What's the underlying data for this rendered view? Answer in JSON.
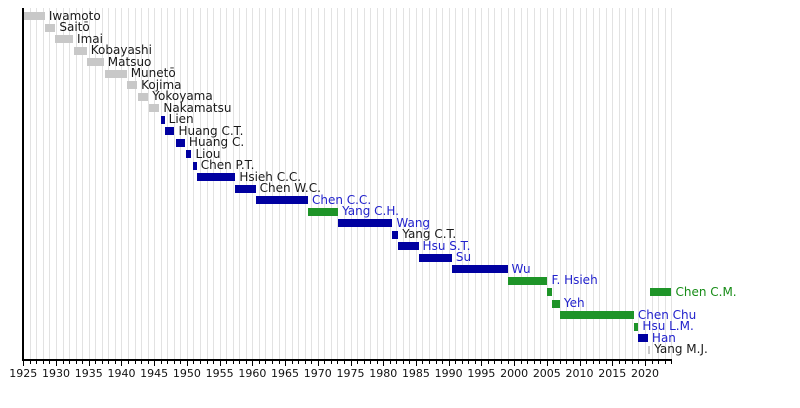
{
  "chart_data": {
    "type": "bar",
    "variant": "gantt-timeline",
    "xlabel": "",
    "ylabel": "",
    "grid": "annual vertical gridlines",
    "legend": "none",
    "axis": {
      "year_min": 1925,
      "year_max": 2024,
      "minor_tick_step": 1,
      "major_tick_step": 5,
      "major_tick_labels": [
        "1925",
        "1930",
        "1935",
        "1940",
        "1945",
        "1950",
        "1955",
        "1960",
        "1965",
        "1970",
        "1975",
        "1980",
        "1985",
        "1990",
        "1995",
        "2000",
        "2005",
        "2010",
        "2015",
        "2020"
      ]
    },
    "colors": {
      "bar": {
        "gray": "#c8c8c8",
        "blue": "#0000a0",
        "green": "#1e9428"
      },
      "label": {
        "black": "#1a1a1a",
        "blue": "#2222cc",
        "green": "#178c17"
      },
      "axis": "#000000",
      "gridline": "#e2e2e2"
    },
    "series": [
      {
        "name": "Iwamoto",
        "bar_color": "gray",
        "label_color": "black",
        "segments": [
          [
            1925.05,
            1928.3
          ]
        ]
      },
      {
        "name": "Saitō",
        "bar_color": "gray",
        "label_color": "black",
        "segments": [
          [
            1928.3,
            1929.9
          ]
        ]
      },
      {
        "name": "Imai",
        "bar_color": "gray",
        "label_color": "black",
        "segments": [
          [
            1929.9,
            1932.6
          ]
        ]
      },
      {
        "name": "Kobayashi",
        "bar_color": "gray",
        "label_color": "black",
        "segments": [
          [
            1932.7,
            1934.7
          ]
        ]
      },
      {
        "name": "Matsuo",
        "bar_color": "gray",
        "label_color": "black",
        "segments": [
          [
            1934.8,
            1937.3
          ]
        ]
      },
      {
        "name": "Munetō",
        "bar_color": "gray",
        "label_color": "black",
        "segments": [
          [
            1937.5,
            1940.8
          ]
        ]
      },
      {
        "name": "Kojima",
        "bar_color": "gray",
        "label_color": "black",
        "segments": [
          [
            1940.9,
            1942.4
          ]
        ]
      },
      {
        "name": "Yokoyama",
        "bar_color": "gray",
        "label_color": "black",
        "segments": [
          [
            1942.5,
            1944.1
          ]
        ]
      },
      {
        "name": "Nakamatsu",
        "bar_color": "gray",
        "label_color": "black",
        "segments": [
          [
            1944.2,
            1945.8
          ]
        ]
      },
      {
        "name": "Lien",
        "bar_color": "blue",
        "label_color": "black",
        "segments": [
          [
            1946.0,
            1946.6
          ]
        ]
      },
      {
        "name": "Huang C.T.",
        "bar_color": "blue",
        "label_color": "black",
        "segments": [
          [
            1946.6,
            1948.1
          ]
        ]
      },
      {
        "name": "Huang C.",
        "bar_color": "blue",
        "label_color": "black",
        "segments": [
          [
            1948.3,
            1949.7
          ]
        ]
      },
      {
        "name": "Liou",
        "bar_color": "blue",
        "label_color": "black",
        "segments": [
          [
            1949.9,
            1950.7
          ]
        ]
      },
      {
        "name": "Chen P.T.",
        "bar_color": "blue",
        "label_color": "black",
        "segments": [
          [
            1950.9,
            1951.5
          ]
        ]
      },
      {
        "name": "Hsieh C.C.",
        "bar_color": "blue",
        "label_color": "black",
        "segments": [
          [
            1951.5,
            1957.4
          ]
        ]
      },
      {
        "name": "Chen W.C.",
        "bar_color": "blue",
        "label_color": "black",
        "segments": [
          [
            1957.4,
            1960.5
          ]
        ]
      },
      {
        "name": "Chen C.C.",
        "bar_color": "blue",
        "label_color": "blue",
        "segments": [
          [
            1960.5,
            1968.5
          ]
        ]
      },
      {
        "name": "Yang C.H.",
        "bar_color": "green",
        "label_color": "blue",
        "segments": [
          [
            1968.5,
            1973.1
          ]
        ]
      },
      {
        "name": "Wang",
        "bar_color": "blue",
        "label_color": "blue",
        "segments": [
          [
            1973.1,
            1981.4
          ]
        ]
      },
      {
        "name": "Yang C.T.",
        "bar_color": "blue",
        "label_color": "black",
        "segments": [
          [
            1981.4,
            1982.3
          ]
        ]
      },
      {
        "name": "Hsu S.T.",
        "bar_color": "blue",
        "label_color": "blue",
        "segments": [
          [
            1982.3,
            1985.4
          ]
        ]
      },
      {
        "name": "Su",
        "bar_color": "blue",
        "label_color": "blue",
        "segments": [
          [
            1985.4,
            1990.5
          ]
        ]
      },
      {
        "name": "Wu",
        "bar_color": "blue",
        "label_color": "blue",
        "segments": [
          [
            1990.5,
            1999.0
          ]
        ]
      },
      {
        "name": "F. Hsieh",
        "bar_color": "green",
        "label_color": "blue",
        "segments": [
          [
            1999.0,
            2005.1
          ]
        ]
      },
      {
        "name": "Chen C.M.",
        "bar_color": "green",
        "label_color": "green",
        "segments": [
          [
            2005.1,
            2005.8
          ],
          [
            2020.7,
            2024.05
          ]
        ]
      },
      {
        "name": "Yeh",
        "bar_color": "green",
        "label_color": "blue",
        "segments": [
          [
            2005.8,
            2007.0
          ]
        ]
      },
      {
        "name": "Chen Chu",
        "bar_color": "green",
        "label_color": "blue",
        "segments": [
          [
            2007.0,
            2018.3
          ]
        ]
      },
      {
        "name": "Hsu L.M.",
        "bar_color": "green",
        "label_color": "blue",
        "segments": [
          [
            2018.3,
            2019.0
          ]
        ]
      },
      {
        "name": "Han",
        "bar_color": "blue",
        "label_color": "blue",
        "segments": [
          [
            2019.0,
            2020.45
          ]
        ]
      },
      {
        "name": "Yang M.J.",
        "bar_color": "gray",
        "label_color": "black",
        "segments": [
          [
            2020.45,
            2020.8
          ]
        ]
      }
    ]
  }
}
